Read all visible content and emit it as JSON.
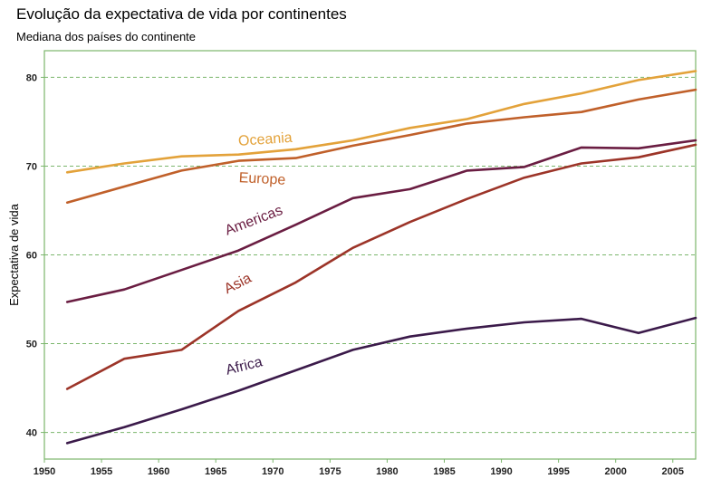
{
  "chart_data": {
    "type": "line",
    "title": "Evolução da expectativa de vida por continentes",
    "subtitle": "Mediana dos países do continente",
    "xlabel": "",
    "ylabel": "Expectativa de vida",
    "xlim": [
      1950,
      2007
    ],
    "ylim": [
      37,
      83
    ],
    "x_ticks": [
      1950,
      1955,
      1960,
      1965,
      1970,
      1975,
      1980,
      1985,
      1990,
      1995,
      2000,
      2005
    ],
    "y_ticks": [
      40,
      50,
      60,
      70,
      80
    ],
    "grid": "horizontal-dashed",
    "legend": "direct-labels",
    "x": [
      1952,
      1957,
      1962,
      1967,
      1972,
      1977,
      1982,
      1987,
      1992,
      1997,
      2002,
      2007
    ],
    "series": [
      {
        "name": "Africa",
        "color": "#3b1a4a",
        "label_pos": {
          "year": 1966,
          "value": 46.5,
          "angle": -14
        },
        "values": [
          38.8,
          40.6,
          42.6,
          44.7,
          47.0,
          49.3,
          50.8,
          51.7,
          52.4,
          52.8,
          51.2,
          52.9
        ]
      },
      {
        "name": "Asia",
        "color": "#9c3428",
        "label_pos": {
          "year": 1966,
          "value": 55.6,
          "angle": -27
        },
        "values": [
          44.9,
          48.3,
          49.3,
          53.7,
          56.9,
          60.8,
          63.7,
          66.3,
          68.7,
          70.3,
          71.0,
          72.4
        ]
      },
      {
        "name": "Americas",
        "color": "#6a1d42",
        "label_pos": {
          "year": 1966,
          "value": 62.2,
          "angle": -21
        },
        "values": [
          54.7,
          56.1,
          58.3,
          60.5,
          63.4,
          66.4,
          67.4,
          69.5,
          69.9,
          72.1,
          72.0,
          72.9
        ]
      },
      {
        "name": "Europe",
        "color": "#c0602a",
        "label_pos": {
          "year": 1967,
          "value": 68.2,
          "angle": 3
        },
        "values": [
          65.9,
          67.7,
          69.5,
          70.6,
          70.9,
          72.3,
          73.5,
          74.8,
          75.5,
          76.1,
          77.5,
          78.6
        ]
      },
      {
        "name": "Oceania",
        "color": "#e3a23a",
        "label_pos": {
          "year": 1967,
          "value": 72.3,
          "angle": -4
        },
        "values": [
          69.3,
          70.3,
          71.1,
          71.3,
          71.9,
          72.9,
          74.3,
          75.3,
          77.0,
          78.2,
          79.7,
          80.7
        ]
      }
    ]
  }
}
